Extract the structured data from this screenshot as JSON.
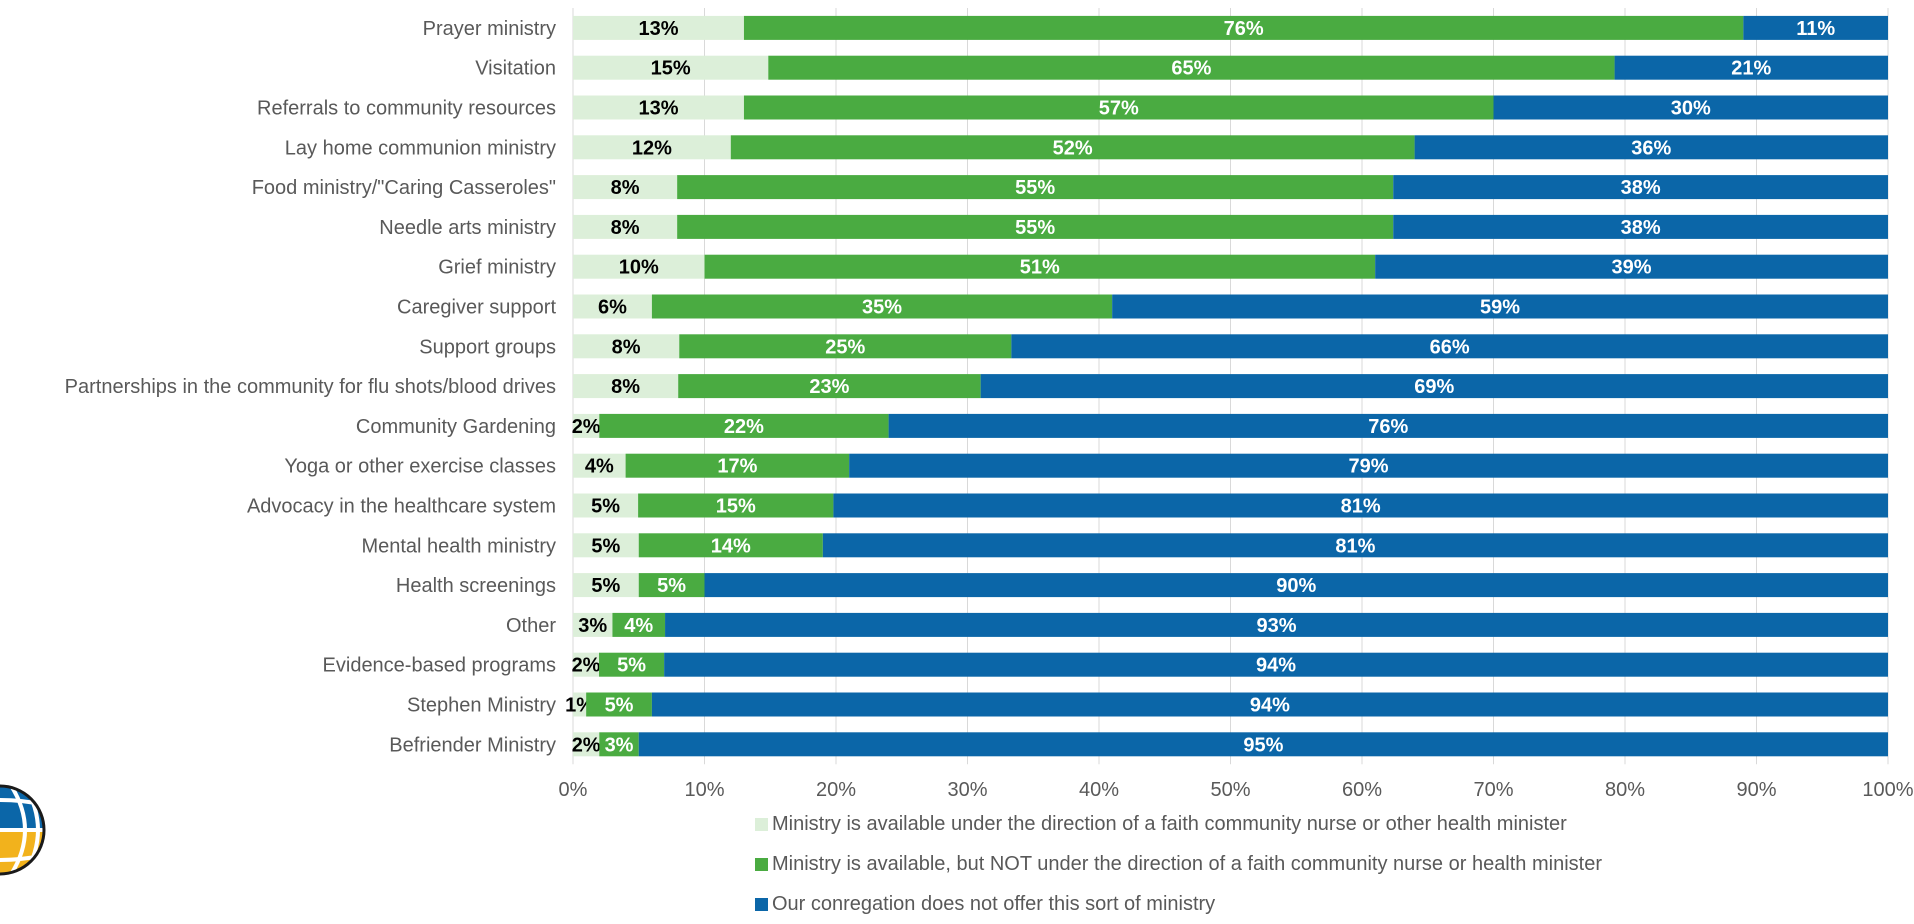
{
  "colors": {
    "series0": "#dcefd9",
    "series1": "#4aab41",
    "series2": "#0b66a8",
    "grid": "#d9d9d9",
    "text": "#595959"
  },
  "chart_data": {
    "type": "bar",
    "orientation": "horizontal",
    "stacked": "percent",
    "categories": [
      "Prayer ministry",
      "Visitation",
      "Referrals to community resources",
      "Lay home communion ministry",
      "Food ministry/\"Caring Casseroles\"",
      "Needle arts ministry",
      "Grief ministry",
      "Caregiver support",
      "Support groups",
      "Partnerships in the community for flu shots/blood drives",
      "Community Gardening",
      "Yoga or other exercise classes",
      "Advocacy in the healthcare system",
      "Mental health ministry",
      "Health screenings",
      "Other",
      "Evidence-based programs",
      "Stephen Ministry",
      "Befriender Ministry"
    ],
    "series": [
      {
        "name": "Ministry is available under the direction of a faith community nurse or other health minister",
        "values": [
          13,
          15,
          13,
          12,
          8,
          8,
          10,
          6,
          8,
          8,
          2,
          4,
          5,
          5,
          5,
          3,
          2,
          1,
          2
        ],
        "labels": [
          "13%",
          "15%",
          "13%",
          "12%",
          "8%",
          "8%",
          "10%",
          "6%",
          "8%",
          "8%",
          "2%",
          "4%",
          "5%",
          "5%",
          "5%",
          "3%",
          "2%",
          "1%",
          "2%"
        ]
      },
      {
        "name": "Ministry is available, but NOT under the direction of a faith community nurse or health minister",
        "values": [
          76,
          65,
          57,
          52,
          55,
          55,
          51,
          35,
          25,
          23,
          22,
          17,
          15,
          14,
          5,
          4,
          5,
          5,
          3
        ],
        "labels": [
          "76%",
          "65%",
          "57%",
          "52%",
          "55%",
          "55%",
          "51%",
          "35%",
          "25%",
          "23%",
          "22%",
          "17%",
          "15%",
          "14%",
          "5%",
          "4%",
          "5%",
          "5%",
          "3%"
        ]
      },
      {
        "name": "Our conregation does not offer this sort of ministry",
        "values": [
          11,
          21,
          30,
          36,
          38,
          38,
          39,
          59,
          66,
          69,
          76,
          79,
          81,
          81,
          90,
          93,
          94,
          94,
          95
        ],
        "labels": [
          "11%",
          "21%",
          "30%",
          "36%",
          "38%",
          "38%",
          "39%",
          "59%",
          "66%",
          "69%",
          "76%",
          "79%",
          "81%",
          "81%",
          "90%",
          "93%",
          "94%",
          "94%",
          "95%"
        ]
      }
    ],
    "xticks": [
      "0%",
      "10%",
      "20%",
      "30%",
      "40%",
      "50%",
      "60%",
      "70%",
      "80%",
      "90%",
      "100%"
    ],
    "xlim": [
      0,
      100
    ],
    "grid": true,
    "legend_position": "bottom"
  }
}
